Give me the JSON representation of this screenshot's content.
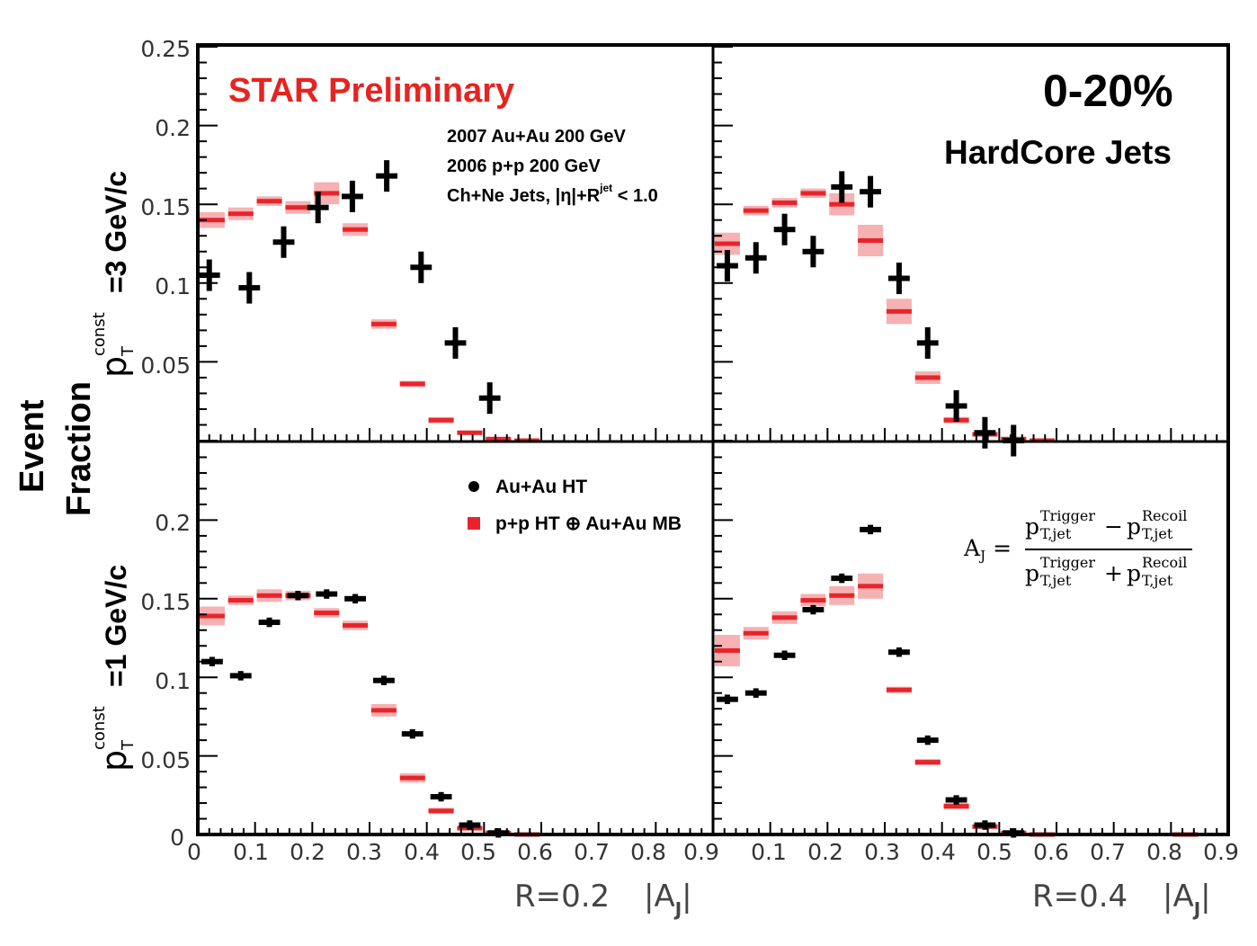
{
  "header": {
    "star_label": "STAR Preliminary",
    "centrality": "0-20%",
    "jet_type": "HardCore Jets",
    "dataset_line1": "2007 Au+Au 200 GeV",
    "dataset_line2": "2006 p+p 200 GeV",
    "dataset_line3_a": "Ch+Ne Jets, |η|+R",
    "dataset_line3_sup": "jet",
    "dataset_line3_b": " < 1.0"
  },
  "y_axis": {
    "event_label": "Event",
    "fraction_label": "Fraction",
    "top_label_p": "p",
    "top_label_sup": "const",
    "top_label_sub": "T",
    "top_label_value": "=3 GeV/c",
    "bottom_label_p": "p",
    "bottom_label_sup": "const",
    "bottom_label_sub": "T",
    "bottom_label_value": "=1 GeV/c"
  },
  "x_axis": {
    "left_r": "R=0.2",
    "right_r": "R=0.4",
    "aj_a": "|A",
    "aj_sub": "J",
    "aj_b": "|"
  },
  "formula": {
    "lhs": "A",
    "lhs_sub": "J",
    "eq": "=",
    "p": "p",
    "trigger": "Trigger",
    "recoil": "Recoil",
    "tjet": "T,jet",
    "minus": "−",
    "plus": "+"
  },
  "legend": {
    "auau": "Au+Au HT",
    "pp": "p+p HT ⊕ Au+Au MB"
  },
  "colors": {
    "auau": "#000000",
    "pp": "#e8242a",
    "pp_band": "#f5a3a5",
    "title_red": "#e52421"
  },
  "chart_data": [
    {
      "type": "scatter",
      "panel": "top-left",
      "title": "pT const = 3 GeV/c, R=0.2",
      "xlabel": "|AJ|",
      "ylabel": "Event Fraction",
      "xlim": [
        0,
        0.9
      ],
      "ylim": [
        0,
        0.25
      ],
      "yticks": [
        "0.25",
        "0.2",
        "0.15",
        "0.1",
        "0.05"
      ],
      "bin_width": 0.05,
      "x": [
        0.025,
        0.075,
        0.125,
        0.175,
        0.225,
        0.275,
        0.325,
        0.375,
        0.425,
        0.475,
        0.525,
        0.575,
        0.625,
        0.675
      ],
      "series": [
        {
          "name": "Au+Au HT",
          "values": [
            0.105,
            0.097,
            0.126,
            0.148,
            0.155,
            0.168,
            0.11,
            0.062,
            0.027,
            null,
            null,
            null,
            null,
            null
          ],
          "x_override": [
            0.025,
            0.075,
            0.125,
            0.175,
            0.225,
            0.275,
            0.325,
            0.375,
            0.425,
            null,
            null,
            null,
            null,
            null
          ]
        },
        {
          "name": "p+p HT ⊕ Au+Au MB",
          "values": [
            0.14,
            0.144,
            0.152,
            0.148,
            0.157,
            0.134,
            0.074,
            0.036,
            0.013,
            0.005,
            0.001,
            0.0,
            null,
            null
          ]
        }
      ],
      "pp_band": [
        0.005,
        0.004,
        0.003,
        0.004,
        0.007,
        0.004,
        0.003,
        0.002,
        0.002,
        0.001,
        0.001,
        0.001,
        null,
        null
      ]
    },
    {
      "type": "scatter",
      "panel": "top-right",
      "title": "pT const = 3 GeV/c, R=0.4",
      "xlabel": "|AJ|",
      "ylabel": "Event Fraction",
      "xlim": [
        0,
        0.9
      ],
      "ylim": [
        0,
        0.25
      ],
      "bin_width": 0.05,
      "series": [
        {
          "name": "Au+Au HT",
          "values": [
            0.111,
            0.116,
            0.134,
            0.12,
            0.161,
            0.158,
            0.103,
            0.062,
            0.022,
            0.005,
            0.0
          ]
        },
        {
          "name": "p+p HT ⊕ Au+Au MB",
          "values": [
            0.125,
            0.146,
            0.151,
            0.157,
            0.15,
            0.127,
            0.082,
            0.04,
            0.013,
            0.004,
            0.001,
            0.0
          ]
        }
      ],
      "pp_band": [
        0.007,
        0.003,
        0.003,
        0.003,
        0.007,
        0.01,
        0.008,
        0.004,
        0.002,
        0.001,
        0.001,
        0.001
      ]
    },
    {
      "type": "scatter",
      "panel": "bottom-left",
      "title": "pT const = 1 GeV/c, R=0.2",
      "xlabel": "|AJ|",
      "ylabel": "Event Fraction",
      "xlim": [
        0,
        0.9
      ],
      "ylim": [
        0,
        0.25
      ],
      "yticks": [
        "0.2",
        "0.15",
        "0.1",
        "0.05",
        "0"
      ],
      "xticks": [
        "0",
        "0.1",
        "0.2",
        "0.3",
        "0.4",
        "0.5",
        "0.6",
        "0.7",
        "0.8",
        "0.9"
      ],
      "bin_width": 0.05,
      "series": [
        {
          "name": "Au+Au HT",
          "values": [
            0.11,
            0.101,
            0.135,
            0.152,
            0.153,
            0.15,
            0.098,
            0.064,
            0.024,
            0.006,
            0.001
          ]
        },
        {
          "name": "p+p HT ⊕ Au+Au MB",
          "values": [
            0.139,
            0.149,
            0.152,
            0.152,
            0.141,
            0.133,
            0.079,
            0.036,
            0.015,
            0.004,
            0.001,
            0.0
          ]
        }
      ],
      "pp_band": [
        0.006,
        0.003,
        0.004,
        0.003,
        0.003,
        0.003,
        0.004,
        0.003,
        0.002,
        0.001,
        0.001,
        0.001
      ]
    },
    {
      "type": "scatter",
      "panel": "bottom-right",
      "title": "pT const = 1 GeV/c, R=0.4",
      "xlabel": "|AJ|",
      "ylabel": "Event Fraction",
      "xlim": [
        0,
        0.9
      ],
      "ylim": [
        0,
        0.25
      ],
      "xticks": [
        "0.1",
        "0.2",
        "0.3",
        "0.4",
        "0.5",
        "0.6",
        "0.7",
        "0.8",
        "0.9"
      ],
      "bin_width": 0.05,
      "series": [
        {
          "name": "Au+Au HT",
          "values": [
            0.086,
            0.09,
            0.114,
            0.143,
            0.163,
            0.194,
            0.116,
            0.06,
            0.022,
            0.006,
            0.001
          ]
        },
        {
          "name": "p+p HT ⊕ Au+Au MB",
          "values": [
            0.117,
            0.128,
            0.138,
            0.149,
            0.152,
            0.158,
            0.092,
            0.046,
            0.018,
            0.005,
            0.001,
            0.0,
            null,
            null,
            null,
            null,
            0.0
          ]
        }
      ],
      "pp_band": [
        0.01,
        0.004,
        0.004,
        0.004,
        0.006,
        0.008,
        0.002,
        0.002,
        0.002,
        0.001,
        0.001,
        0.001,
        null,
        null,
        null,
        null,
        0.001
      ]
    }
  ]
}
